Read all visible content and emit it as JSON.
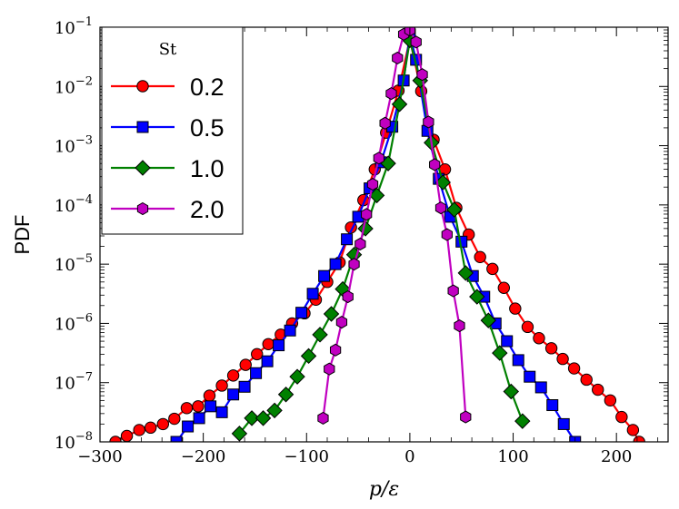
{
  "chart_data": {
    "type": "line",
    "title": "",
    "xlabel": "p/ε",
    "ylabel": "PDF",
    "xlim": [
      -300,
      250
    ],
    "ylim_log10": [
      -8,
      -1
    ],
    "yscale": "log",
    "x_ticks": [
      -300,
      -200,
      -100,
      0,
      100,
      200
    ],
    "x_tick_labels": [
      "−300",
      "−200",
      "−100",
      "0",
      "100",
      "200"
    ],
    "y_tick_exponents": [
      -8,
      -7,
      -6,
      -5,
      -4,
      -3,
      -2,
      -1
    ],
    "y_tick_base": "10",
    "legend": {
      "title": "St",
      "placement": "top-left"
    },
    "series": [
      {
        "name": "0.2",
        "color": "#ff0000",
        "marker": "circle",
        "x": [
          -285,
          -274,
          -262,
          -251,
          -239,
          -228,
          -216,
          -205,
          -194,
          -182,
          -171,
          -159,
          -148,
          -137,
          -125,
          -114,
          -102,
          -91,
          -80,
          -68,
          -57,
          -45,
          -34,
          -23,
          -11,
          0,
          11,
          23,
          34,
          45,
          57,
          68,
          80,
          91,
          102,
          114,
          125,
          137,
          148,
          159,
          171,
          182,
          194,
          205,
          216,
          222
        ],
        "log10y": [
          -8.0,
          -7.9,
          -7.8,
          -7.76,
          -7.7,
          -7.61,
          -7.43,
          -7.4,
          -7.22,
          -7.05,
          -6.88,
          -6.7,
          -6.52,
          -6.35,
          -6.19,
          -6.0,
          -5.83,
          -5.6,
          -5.3,
          -4.97,
          -4.38,
          -3.92,
          -3.4,
          -2.78,
          -2.07,
          -1.2,
          -2.08,
          -2.9,
          -3.4,
          -4.05,
          -4.5,
          -4.88,
          -5.08,
          -5.4,
          -5.75,
          -6.06,
          -6.25,
          -6.42,
          -6.6,
          -6.76,
          -6.95,
          -7.12,
          -7.3,
          -7.58,
          -7.8,
          -8.0
        ]
      },
      {
        "name": "0.5",
        "color": "#0000ff",
        "marker": "square",
        "x": [
          -226,
          -215,
          -204,
          -193,
          -182,
          -171,
          -160,
          -149,
          -138,
          -127,
          -116,
          -105,
          -94,
          -83,
          -72,
          -61,
          -50,
          -39,
          -28,
          -17,
          -6,
          0,
          6,
          17,
          28,
          39,
          50,
          61,
          72,
          83,
          94,
          105,
          116,
          127,
          138,
          149,
          160
        ],
        "log10y": [
          -8.0,
          -7.74,
          -7.6,
          -7.4,
          -7.5,
          -7.2,
          -7.07,
          -6.84,
          -6.64,
          -6.37,
          -6.12,
          -5.82,
          -5.5,
          -5.2,
          -5.0,
          -4.58,
          -4.2,
          -3.72,
          -3.28,
          -2.68,
          -1.9,
          -1.12,
          -1.55,
          -2.75,
          -3.56,
          -4.2,
          -4.62,
          -5.2,
          -5.55,
          -6.0,
          -6.3,
          -6.62,
          -6.9,
          -7.08,
          -7.38,
          -7.7,
          -8.0
        ]
      },
      {
        "name": "1.0",
        "color": "#008000",
        "marker": "diamond",
        "x": [
          -165,
          -153,
          -142,
          -131,
          -120,
          -109,
          -98,
          -87,
          -76,
          -65,
          -54,
          -43,
          -32,
          -21,
          -10,
          0,
          10,
          21,
          32,
          43,
          54,
          65,
          76,
          87,
          98,
          109
        ],
        "log10y": [
          -7.86,
          -7.6,
          -7.6,
          -7.47,
          -7.2,
          -6.9,
          -6.55,
          -6.19,
          -5.84,
          -5.42,
          -4.84,
          -4.4,
          -3.84,
          -3.3,
          -2.3,
          -1.22,
          -1.9,
          -2.95,
          -3.62,
          -4.08,
          -5.15,
          -5.55,
          -5.95,
          -6.5,
          -7.15,
          -7.65
        ]
      },
      {
        "name": "2.0",
        "color": "#c000c0",
        "marker": "hexagon",
        "x": [
          -84,
          -78,
          -72,
          -66,
          -60,
          -54,
          -48,
          -42,
          -36,
          -30,
          -24,
          -18,
          -12,
          -6,
          0,
          6,
          12,
          18,
          24,
          30,
          36,
          42,
          48,
          54
        ],
        "log10y": [
          -7.6,
          -6.77,
          -6.45,
          -5.98,
          -5.55,
          -5.0,
          -4.66,
          -4.16,
          -3.65,
          -3.21,
          -2.62,
          -2.12,
          -1.52,
          -1.12,
          -1.05,
          -1.25,
          -1.8,
          -2.6,
          -3.32,
          -4.05,
          -4.5,
          -5.45,
          -6.04,
          -7.58
        ]
      }
    ]
  }
}
